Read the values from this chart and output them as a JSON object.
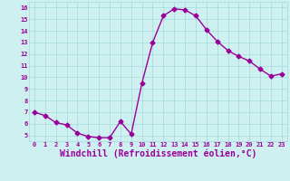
{
  "x": [
    0,
    1,
    2,
    3,
    4,
    5,
    6,
    7,
    8,
    9,
    10,
    11,
    12,
    13,
    14,
    15,
    16,
    17,
    18,
    19,
    20,
    21,
    22,
    23
  ],
  "y": [
    7.0,
    6.7,
    6.1,
    5.9,
    5.2,
    4.9,
    4.8,
    4.8,
    6.2,
    5.1,
    9.5,
    13.0,
    15.3,
    15.9,
    15.8,
    15.3,
    14.1,
    13.1,
    12.3,
    11.8,
    11.4,
    10.7,
    10.1,
    10.3
  ],
  "line_color": "#990099",
  "marker": "D",
  "markersize": 2.5,
  "linewidth": 1.0,
  "xlabel": "Windchill (Refroidissement éolien,°C)",
  "xlabel_fontsize": 7,
  "xtick_labels": [
    "0",
    "1",
    "2",
    "3",
    "4",
    "5",
    "6",
    "7",
    "8",
    "9",
    "10",
    "11",
    "12",
    "13",
    "14",
    "15",
    "16",
    "17",
    "18",
    "19",
    "20",
    "21",
    "22",
    "23"
  ],
  "ytick_labels": [
    "5",
    "6",
    "7",
    "8",
    "9",
    "10",
    "11",
    "12",
    "13",
    "14",
    "15",
    "16"
  ],
  "ylim": [
    4.5,
    16.5
  ],
  "xlim": [
    -0.5,
    23.5
  ],
  "background_color": "#cff0f0",
  "grid_color": "#aadddd",
  "tick_color": "#990099",
  "label_color": "#990099",
  "font_family": "monospace"
}
